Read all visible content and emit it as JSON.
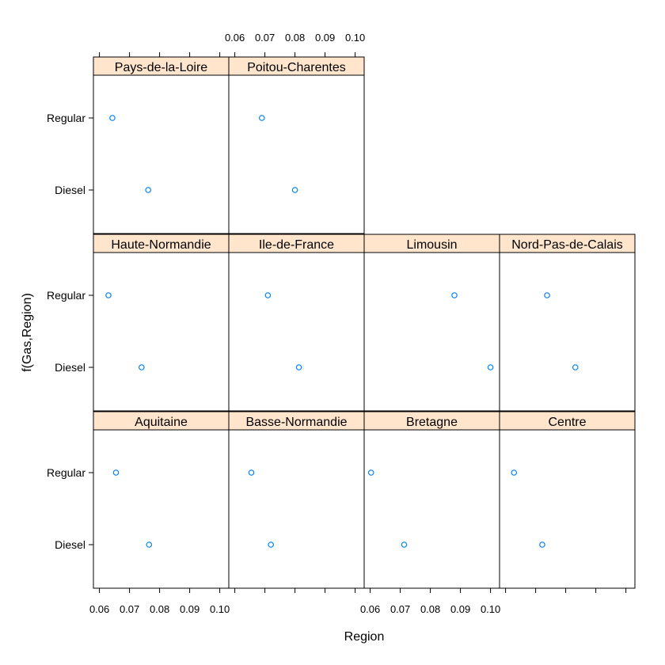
{
  "chart_data": {
    "type": "scatter",
    "layout": {
      "columns": 4,
      "rows": 3
    },
    "xlabel": "Region",
    "ylabel": "f(Gas,Region)",
    "xlim": [
      0.058,
      0.103
    ],
    "x_ticks": [
      0.06,
      0.07,
      0.08,
      0.09,
      0.1
    ],
    "x_tick_labels": [
      "0.06",
      "0.07",
      "0.08",
      "0.09",
      "0.10"
    ],
    "categories": [
      "Regular",
      "Diesel"
    ],
    "point_color": "#0080ff",
    "strip_color": "#ffe5cc",
    "panels": [
      {
        "region": "Aquitaine",
        "row": 1,
        "col": 1,
        "values": {
          "Regular": 0.0655,
          "Diesel": 0.0765
        }
      },
      {
        "region": "Basse-Normandie",
        "row": 1,
        "col": 2,
        "values": {
          "Regular": 0.0655,
          "Diesel": 0.072
        }
      },
      {
        "region": "Bretagne",
        "row": 1,
        "col": 3,
        "values": {
          "Regular": 0.0603,
          "Diesel": 0.0713
        }
      },
      {
        "region": "Centre",
        "row": 1,
        "col": 4,
        "values": {
          "Regular": 0.0628,
          "Diesel": 0.0722
        }
      },
      {
        "region": "Haute-Normandie",
        "row": 2,
        "col": 1,
        "values": {
          "Regular": 0.063,
          "Diesel": 0.074
        }
      },
      {
        "region": "Ile-de-France",
        "row": 2,
        "col": 2,
        "values": {
          "Regular": 0.071,
          "Diesel": 0.0813
        }
      },
      {
        "region": "Limousin",
        "row": 2,
        "col": 3,
        "values": {
          "Regular": 0.088,
          "Diesel": 0.1
        }
      },
      {
        "region": "Nord-Pas-de-Calais",
        "row": 2,
        "col": 4,
        "values": {
          "Regular": 0.0738,
          "Diesel": 0.0832
        }
      },
      {
        "region": "Pays-de-la-Loire",
        "row": 3,
        "col": 1,
        "values": {
          "Regular": 0.0643,
          "Diesel": 0.0762
        }
      },
      {
        "region": "Poitou-Charentes",
        "row": 3,
        "col": 2,
        "values": {
          "Regular": 0.069,
          "Diesel": 0.08
        }
      }
    ]
  }
}
